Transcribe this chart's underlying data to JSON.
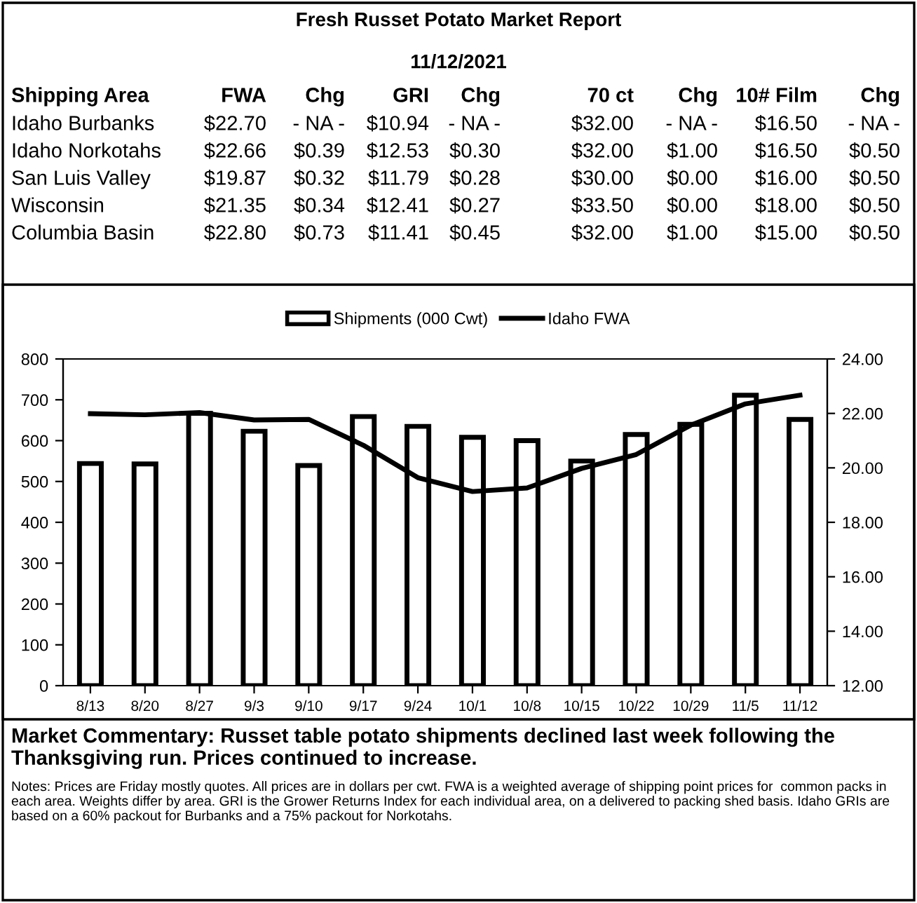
{
  "chart_data": [
    {
      "type": "other",
      "title": "Fresh Russet Potato Market Report",
      "subtitle": "11/12/2021",
      "annotations": [
        "Shipping Area",
        "FWA",
        "Chg",
        "GRI",
        "Chg",
        "70 ct",
        "Chg",
        "10# Film",
        "Chg",
        "Idaho Burbanks",
        "$22.70",
        "- NA -",
        "$10.94",
        "- NA -",
        "$32.00",
        "- NA -",
        "$16.50",
        "- NA -",
        "Idaho Norkotahs",
        "$22.66",
        "$0.39",
        "$12.53",
        "$0.30",
        "$32.00",
        "$1.00",
        "$16.50",
        "$0.50",
        "San Luis Valley",
        "$19.87",
        "$0.32",
        "$11.79",
        "$0.28",
        "$30.00",
        "$0.00",
        "$16.00",
        "$0.50",
        "Wisconsin",
        "$21.35",
        "$0.34",
        "$12.41",
        "$0.27",
        "$33.50",
        "$0.00",
        "$18.00",
        "$0.50",
        "Columbia Basin",
        "$22.80",
        "$0.73",
        "$11.41",
        "$0.45",
        "$32.00",
        "$1.00",
        "$15.00",
        "$0.50"
      ]
    },
    {
      "type": "bar",
      "categories": [
        "8/13",
        "8/20",
        "8/27",
        "9/3",
        "9/10",
        "9/17",
        "9/24",
        "10/1",
        "10/8",
        "10/15",
        "10/22",
        "10/29",
        "11/5",
        "11/12"
      ],
      "series": [
        {
          "name": "Shipments (000 Cwt)",
          "type": "bar",
          "color": "#ffffff",
          "values": [
            544,
            543,
            667,
            623,
            539,
            659,
            635,
            608,
            600,
            550,
            615,
            640,
            711,
            652
          ]
        },
        {
          "name": "Idaho FWA",
          "type": "line",
          "axis": "y2",
          "color": "#000000",
          "values": [
            21.99,
            21.95,
            22.03,
            21.76,
            21.78,
            20.83,
            19.64,
            19.13,
            19.26,
            19.98,
            20.49,
            21.57,
            22.35,
            22.67
          ]
        }
      ],
      "ylim": [
        0,
        800
      ],
      "yticks": [
        0,
        100,
        200,
        300,
        400,
        500,
        600,
        700,
        800
      ],
      "y2lim": [
        12,
        24
      ],
      "y2ticks": [
        {
          "value": 12,
          "label": "12.00"
        },
        {
          "value": 14,
          "label": "14.00"
        },
        {
          "value": 16,
          "label": "16.00"
        },
        {
          "value": 18,
          "label": "18.00"
        },
        {
          "value": 20,
          "label": "20.00"
        },
        {
          "value": 22,
          "label": "22.00"
        },
        {
          "value": 24,
          "label": "24.00"
        }
      ],
      "legend": "top",
      "marker": "none",
      "line_style": "solid",
      "annotations": [
        "Market Commentary: Russet table potato shipments declined last week following the Thanksgiving run. Prices continued to increase.",
        "Notes: Prices are Friday mostly quotes. All prices are in dollars per cwt. FWA is a weighted average of shipping point prices for  common packs in each area. Weights differ by area. GRI is the Grower Returns Index for each individual area, on a delivered to packing shed basis. Idaho GRIs are based on a 60% packout for Burbanks and a 75% packout for Norkotahs."
      ]
    }
  ]
}
